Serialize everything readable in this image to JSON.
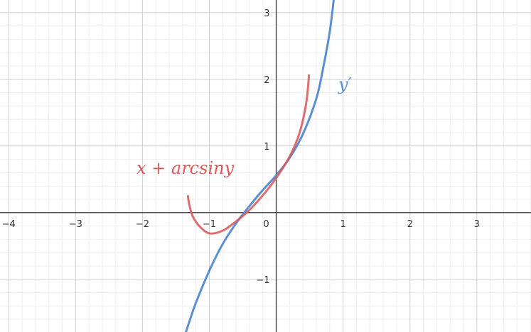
{
  "chart_data": {
    "type": "line",
    "title": "",
    "xlabel": "",
    "ylabel": "",
    "xlim": [
      -4.13,
      3.81
    ],
    "ylim": [
      -1.79,
      3.19
    ],
    "grid": true,
    "x_ticks": [
      -4,
      -3,
      -2,
      -1,
      0,
      1,
      2,
      3
    ],
    "y_ticks": [
      -1,
      1,
      2,
      3
    ],
    "x_tick_labels": [
      "−4",
      "−3",
      "−2",
      "−1",
      "0",
      "1",
      "2",
      "3"
    ],
    "y_tick_labels": [
      "−1",
      "1",
      "2",
      "3"
    ],
    "series": [
      {
        "name": "y′",
        "color": "#5b8fd4",
        "points": [
          [
            -1.35,
            -1.79
          ],
          [
            -1.2,
            -1.35
          ],
          [
            -1.0,
            -0.87
          ],
          [
            -0.8,
            -0.47
          ],
          [
            -0.6,
            -0.16
          ],
          [
            -0.4,
            0.1
          ],
          [
            -0.2,
            0.34
          ],
          [
            0.0,
            0.56
          ],
          [
            0.2,
            0.82
          ],
          [
            0.4,
            1.18
          ],
          [
            0.6,
            1.71
          ],
          [
            0.7,
            2.16
          ],
          [
            0.8,
            2.71
          ],
          [
            0.86,
            3.19
          ]
        ]
      },
      {
        "name": "x + arcsiny",
        "color": "#d9595b",
        "points": [
          [
            -1.32,
            0.25
          ],
          [
            -1.3,
            0.12
          ],
          [
            -1.25,
            -0.05
          ],
          [
            -1.15,
            -0.2
          ],
          [
            -1.0,
            -0.31
          ],
          [
            -0.8,
            -0.27
          ],
          [
            -0.6,
            -0.13
          ],
          [
            -0.4,
            0.04
          ],
          [
            -0.2,
            0.26
          ],
          [
            0.0,
            0.52
          ],
          [
            0.2,
            0.84
          ],
          [
            0.35,
            1.2
          ],
          [
            0.45,
            1.65
          ],
          [
            0.49,
            2.06
          ]
        ]
      }
    ]
  }
}
